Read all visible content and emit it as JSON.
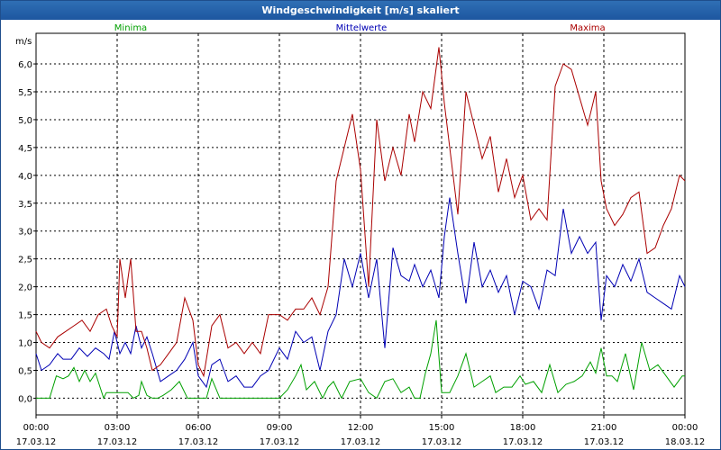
{
  "window": {
    "title": "Windgeschwindigkeit [m/s] skaliert"
  },
  "chart_data": {
    "type": "line",
    "title": "Windgeschwindigkeit [m/s] skaliert",
    "ylabel": "m/s",
    "xlabel": "",
    "ylim": [
      -0.3,
      6.55
    ],
    "xlim": [
      0,
      24
    ],
    "grid": true,
    "legend_position": "top",
    "y_ticks": [
      0.0,
      0.5,
      1.0,
      1.5,
      2.0,
      2.5,
      3.0,
      3.5,
      4.0,
      4.5,
      5.0,
      5.5,
      6.0
    ],
    "y_tick_labels": [
      "0,0",
      "0,5",
      "1,0",
      "1,5",
      "2,0",
      "2,5",
      "3,0",
      "3,5",
      "4,0",
      "4,5",
      "5,0",
      "5,5",
      "6,0"
    ],
    "x_ticks": [
      0,
      3,
      6,
      9,
      12,
      15,
      18,
      21,
      24
    ],
    "x_tick_labels": [
      {
        "time": "00:00",
        "date": "17.03.12"
      },
      {
        "time": "03:00",
        "date": "17.03.12"
      },
      {
        "time": "06:00",
        "date": "17.03.12"
      },
      {
        "time": "09:00",
        "date": "17.03.12"
      },
      {
        "time": "12:00",
        "date": "17.03.12"
      },
      {
        "time": "15:00",
        "date": "17.03.12"
      },
      {
        "time": "18:00",
        "date": "17.03.12"
      },
      {
        "time": "21:00",
        "date": "17.03.12"
      },
      {
        "time": "00:00",
        "date": "18.03.12"
      }
    ],
    "series": [
      {
        "name": "Minima",
        "color": "#00a000",
        "x": [
          0.0,
          0.5,
          0.75,
          1.0,
          1.2,
          1.4,
          1.6,
          1.8,
          2.0,
          2.2,
          2.5,
          2.6,
          2.8,
          3.0,
          3.2,
          3.4,
          3.6,
          3.8,
          3.9,
          4.1,
          4.3,
          4.5,
          4.7,
          5.0,
          5.3,
          5.6,
          6.0,
          6.3,
          6.5,
          6.8,
          7.1,
          7.4,
          7.7,
          8.0,
          8.5,
          9.0,
          9.3,
          9.6,
          9.8,
          10.0,
          10.3,
          10.6,
          10.8,
          11.0,
          11.3,
          11.6,
          12.0,
          12.3,
          12.6,
          12.9,
          13.2,
          13.5,
          13.8,
          14.0,
          14.2,
          14.4,
          14.6,
          14.8,
          15.0,
          15.3,
          15.6,
          15.9,
          16.2,
          16.5,
          16.8,
          17.0,
          17.3,
          17.6,
          17.9,
          18.1,
          18.4,
          18.7,
          19.0,
          19.3,
          19.6,
          19.9,
          20.2,
          20.5,
          20.7,
          20.9,
          21.1,
          21.3,
          21.5,
          21.8,
          22.1,
          22.4,
          22.7,
          23.0,
          23.3,
          23.6,
          23.9,
          24.0
        ],
        "y": [
          0.0,
          0.0,
          0.4,
          0.35,
          0.4,
          0.55,
          0.3,
          0.5,
          0.3,
          0.45,
          0.0,
          0.1,
          0.1,
          0.1,
          0.1,
          0.1,
          0.0,
          0.05,
          0.3,
          0.05,
          0.0,
          0.0,
          0.05,
          0.15,
          0.3,
          0.0,
          0.0,
          0.0,
          0.35,
          0.0,
          0.0,
          0.0,
          0.0,
          0.0,
          0.0,
          0.0,
          0.15,
          0.4,
          0.6,
          0.15,
          0.3,
          0.0,
          0.2,
          0.3,
          0.0,
          0.3,
          0.35,
          0.1,
          0.0,
          0.3,
          0.35,
          0.1,
          0.2,
          0.0,
          0.0,
          0.45,
          0.8,
          1.4,
          0.1,
          0.1,
          0.4,
          0.8,
          0.2,
          0.3,
          0.4,
          0.1,
          0.2,
          0.2,
          0.4,
          0.25,
          0.3,
          0.1,
          0.6,
          0.1,
          0.25,
          0.3,
          0.4,
          0.65,
          0.45,
          0.9,
          0.4,
          0.4,
          0.3,
          0.8,
          0.15,
          1.0,
          0.5,
          0.6,
          0.4,
          0.2,
          0.4,
          0.4
        ]
      },
      {
        "name": "Mittelwerte",
        "color": "#0000b4",
        "x": [
          0.0,
          0.2,
          0.5,
          0.8,
          1.0,
          1.3,
          1.6,
          1.9,
          2.2,
          2.5,
          2.7,
          2.9,
          3.1,
          3.3,
          3.5,
          3.7,
          3.9,
          4.1,
          4.3,
          4.6,
          4.9,
          5.2,
          5.5,
          5.8,
          6.0,
          6.3,
          6.5,
          6.8,
          7.1,
          7.4,
          7.7,
          8.0,
          8.3,
          8.6,
          9.0,
          9.3,
          9.6,
          9.9,
          10.2,
          10.5,
          10.8,
          11.1,
          11.4,
          11.7,
          12.0,
          12.3,
          12.6,
          12.9,
          13.2,
          13.5,
          13.8,
          14.0,
          14.3,
          14.6,
          14.9,
          15.1,
          15.3,
          15.6,
          15.9,
          16.2,
          16.5,
          16.8,
          17.1,
          17.4,
          17.7,
          18.0,
          18.3,
          18.6,
          18.9,
          19.2,
          19.5,
          19.8,
          20.1,
          20.4,
          20.7,
          20.9,
          21.1,
          21.4,
          21.7,
          22.0,
          22.3,
          22.6,
          22.9,
          23.2,
          23.5,
          23.8,
          24.0
        ],
        "y": [
          0.8,
          0.5,
          0.6,
          0.8,
          0.7,
          0.7,
          0.9,
          0.75,
          0.9,
          0.8,
          0.7,
          1.2,
          0.8,
          1.0,
          0.8,
          1.3,
          0.9,
          1.1,
          0.8,
          0.3,
          0.4,
          0.5,
          0.7,
          1.0,
          0.4,
          0.2,
          0.6,
          0.7,
          0.3,
          0.4,
          0.2,
          0.2,
          0.4,
          0.5,
          0.9,
          0.7,
          1.2,
          1.0,
          1.1,
          0.5,
          1.2,
          1.5,
          2.5,
          2.0,
          2.6,
          1.8,
          2.5,
          0.9,
          2.7,
          2.2,
          2.1,
          2.4,
          2.0,
          2.3,
          1.8,
          2.9,
          3.6,
          2.6,
          1.7,
          2.8,
          2.0,
          2.3,
          1.9,
          2.2,
          1.5,
          2.1,
          2.0,
          1.6,
          2.3,
          2.2,
          3.4,
          2.6,
          2.9,
          2.6,
          2.8,
          1.4,
          2.2,
          2.0,
          2.4,
          2.1,
          2.5,
          1.9,
          1.8,
          1.7,
          1.6,
          2.2,
          2.0
        ]
      },
      {
        "name": "Maxima",
        "color": "#aa0000",
        "x": [
          0.0,
          0.2,
          0.5,
          0.8,
          1.1,
          1.4,
          1.7,
          2.0,
          2.3,
          2.6,
          2.8,
          3.0,
          3.1,
          3.3,
          3.5,
          3.7,
          3.9,
          4.1,
          4.3,
          4.6,
          4.9,
          5.2,
          5.5,
          5.8,
          6.0,
          6.2,
          6.5,
          6.8,
          7.1,
          7.4,
          7.7,
          8.0,
          8.3,
          8.6,
          9.0,
          9.3,
          9.6,
          9.9,
          10.2,
          10.5,
          10.8,
          11.1,
          11.4,
          11.7,
          12.0,
          12.3,
          12.6,
          12.9,
          13.2,
          13.5,
          13.8,
          14.0,
          14.3,
          14.6,
          14.9,
          15.1,
          15.3,
          15.6,
          15.9,
          16.2,
          16.5,
          16.8,
          17.1,
          17.4,
          17.7,
          18.0,
          18.3,
          18.6,
          18.9,
          19.2,
          19.5,
          19.8,
          20.1,
          20.4,
          20.7,
          20.9,
          21.1,
          21.4,
          21.7,
          22.0,
          22.3,
          22.6,
          22.9,
          23.2,
          23.5,
          23.8,
          24.0
        ],
        "y": [
          1.2,
          1.0,
          0.9,
          1.1,
          1.2,
          1.3,
          1.4,
          1.2,
          1.5,
          1.6,
          1.3,
          1.1,
          2.5,
          1.8,
          2.5,
          1.2,
          1.2,
          0.9,
          0.5,
          0.6,
          0.8,
          1.0,
          1.8,
          1.4,
          0.6,
          0.4,
          1.3,
          1.5,
          0.9,
          1.0,
          0.8,
          1.0,
          0.8,
          1.5,
          1.5,
          1.4,
          1.6,
          1.6,
          1.8,
          1.5,
          2.0,
          3.9,
          4.5,
          5.1,
          4.1,
          2.0,
          5.0,
          3.9,
          4.5,
          4.0,
          5.1,
          4.6,
          5.5,
          5.2,
          6.3,
          5.3,
          4.5,
          3.3,
          5.5,
          4.9,
          4.3,
          4.7,
          3.7,
          4.3,
          3.6,
          4.0,
          3.2,
          3.4,
          3.2,
          5.6,
          6.0,
          5.9,
          5.4,
          4.9,
          5.5,
          3.9,
          3.4,
          3.1,
          3.3,
          3.6,
          3.7,
          2.6,
          2.7,
          3.1,
          3.4,
          4.0,
          3.9
        ]
      }
    ]
  }
}
